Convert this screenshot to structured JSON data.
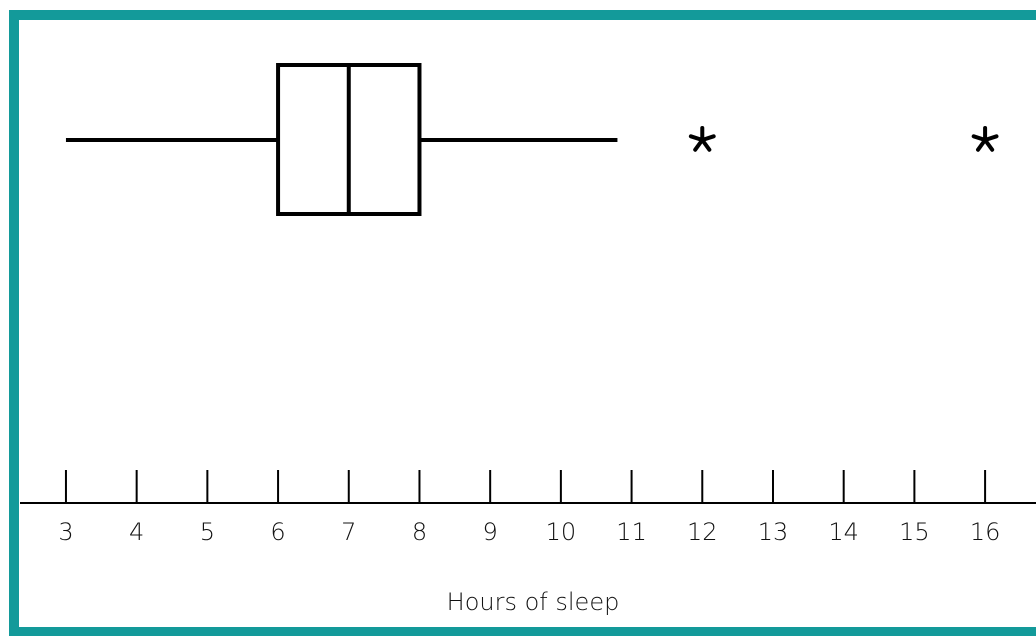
{
  "chart_data": {
    "type": "box",
    "xlabel": "Hours of sleep",
    "whislo": 3,
    "q1": 6,
    "med": 7,
    "q3": 8,
    "whishi": 10.8,
    "fliers": [
      12,
      16
    ],
    "xlim": [
      2.35,
      16.72
    ],
    "xticks": [
      3,
      4,
      5,
      6,
      7,
      8,
      9,
      10,
      11,
      12,
      13,
      14,
      15,
      16
    ],
    "color": "#000000",
    "frame_color": "#139a9a"
  }
}
